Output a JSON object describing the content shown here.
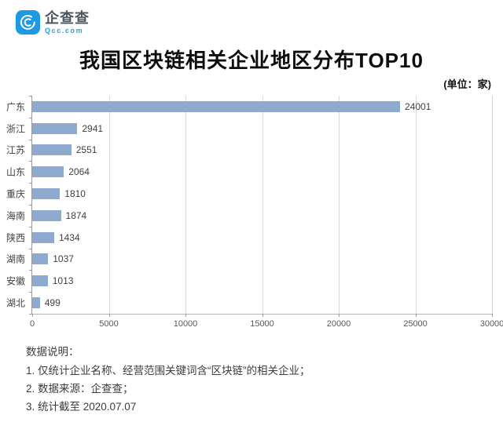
{
  "logo": {
    "text": "企查查",
    "subtext": "Qcc.com",
    "brand_color": "#1e9ae2"
  },
  "header": {
    "title": "我国区块链相关企业地区分布TOP10",
    "unit_label": "(单位：家)"
  },
  "chart_data": {
    "type": "bar",
    "orientation": "horizontal",
    "title": "我国区块链相关企业地区分布TOP10",
    "unit": "家",
    "categories": [
      "广东",
      "浙江",
      "江苏",
      "山东",
      "重庆",
      "海南",
      "陕西",
      "湖南",
      "安徽",
      "湖北"
    ],
    "values": [
      24001,
      2941,
      2551,
      2064,
      1810,
      1874,
      1434,
      1037,
      1013,
      499
    ],
    "xlabel": "",
    "ylabel": "",
    "xlim": [
      0,
      30000
    ],
    "x_ticks": [
      0,
      5000,
      10000,
      15000,
      20000,
      25000,
      30000
    ],
    "grid": true,
    "legend": false,
    "bar_color": "#8faacf"
  },
  "notes": {
    "heading": "数据说明：",
    "items": [
      "1. 仅统计企业名称、经营范围关键词含“区块链”的相关企业；",
      "2. 数据来源：企查查；",
      "3. 统计截至 2020.07.07"
    ]
  }
}
